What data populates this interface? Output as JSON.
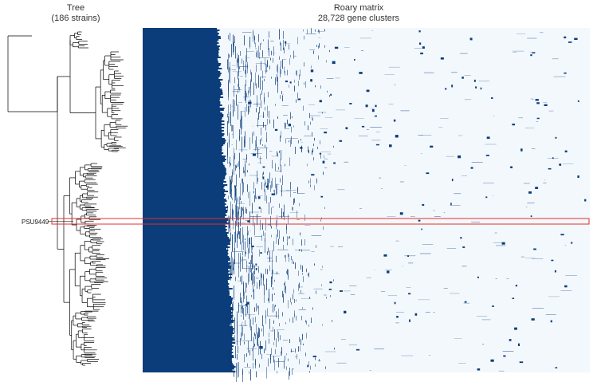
{
  "tree": {
    "title": "Tree",
    "subtitle": "(186 strains)"
  },
  "matrix": {
    "title": "Roary matrix",
    "subtitle": "28,728 gene clusters"
  },
  "highlight": {
    "label": "PSU9449"
  },
  "colors": {
    "present": "#0b3d7a",
    "absent": "#f3f8fd",
    "highlight": "#e0302c",
    "tree": "#000000"
  }
}
